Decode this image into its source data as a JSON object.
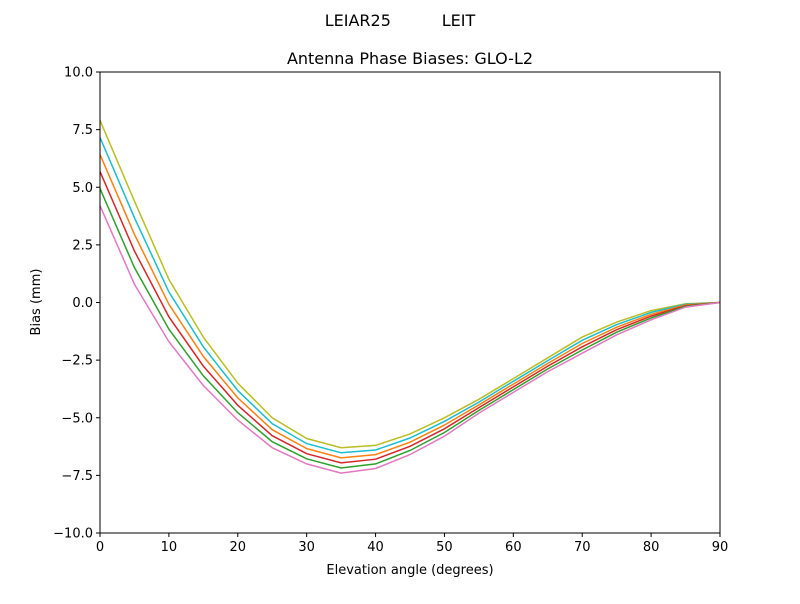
{
  "chart_data": {
    "type": "line",
    "suptitle": "LEIAR25          LEIT",
    "title": "Antenna Phase Biases: GLO-L2",
    "xlabel": "Elevation angle (degrees)",
    "ylabel": "Bias (mm)",
    "xlim": [
      0,
      90
    ],
    "ylim": [
      -10,
      10
    ],
    "xticks": [
      0,
      10,
      20,
      30,
      40,
      50,
      60,
      70,
      80,
      90
    ],
    "xtick_labels": [
      "0",
      "10",
      "20",
      "30",
      "40",
      "50",
      "60",
      "70",
      "80",
      "90"
    ],
    "yticks": [
      -10,
      -7.5,
      -5,
      -2.5,
      0,
      2.5,
      5,
      7.5,
      10
    ],
    "ytick_labels": [
      "−10.0",
      "−7.5",
      "−5.0",
      "−2.5",
      "0.0",
      "2.5",
      "5.0",
      "7.5",
      "10.0"
    ],
    "grid": false,
    "x": [
      0,
      5,
      10,
      15,
      20,
      25,
      30,
      35,
      40,
      45,
      50,
      55,
      60,
      65,
      70,
      75,
      80,
      85,
      90
    ],
    "series": [
      {
        "color": "#bcbd22",
        "values": [
          7.9,
          4.4,
          1.0,
          -1.5,
          -3.5,
          -5.0,
          -5.9,
          -6.3,
          -6.2,
          -5.7,
          -5.0,
          -4.2,
          -3.3,
          -2.4,
          -1.5,
          -0.85,
          -0.35,
          -0.05,
          0
        ]
      },
      {
        "color": "#17becf",
        "values": [
          7.16,
          3.68,
          0.46,
          -1.92,
          -3.82,
          -5.26,
          -6.12,
          -6.52,
          -6.4,
          -5.88,
          -5.16,
          -4.32,
          -3.42,
          -2.52,
          -1.64,
          -0.96,
          -0.43,
          -0.08,
          0
        ]
      },
      {
        "color": "#ff7f0e",
        "values": [
          6.42,
          2.96,
          -0.08,
          -2.34,
          -4.14,
          -5.52,
          -6.34,
          -6.74,
          -6.6,
          -6.06,
          -5.32,
          -4.44,
          -3.54,
          -2.64,
          -1.78,
          -1.07,
          -0.51,
          -0.11,
          0
        ]
      },
      {
        "color": "#d62728",
        "values": [
          5.68,
          2.24,
          -0.62,
          -2.76,
          -4.46,
          -5.78,
          -6.56,
          -6.96,
          -6.8,
          -6.24,
          -5.48,
          -4.56,
          -3.66,
          -2.76,
          -1.92,
          -1.18,
          -0.59,
          -0.14,
          0
        ]
      },
      {
        "color": "#2ca02c",
        "values": [
          4.94,
          1.52,
          -1.16,
          -3.18,
          -4.78,
          -6.04,
          -6.78,
          -7.18,
          -7.0,
          -6.42,
          -5.64,
          -4.68,
          -3.78,
          -2.88,
          -2.06,
          -1.29,
          -0.67,
          -0.17,
          0
        ]
      },
      {
        "color": "#e377c2",
        "values": [
          4.2,
          0.8,
          -1.7,
          -3.6,
          -5.1,
          -6.3,
          -7.0,
          -7.4,
          -7.2,
          -6.6,
          -5.8,
          -4.8,
          -3.9,
          -3.0,
          -2.2,
          -1.4,
          -0.75,
          -0.2,
          0
        ]
      }
    ]
  }
}
